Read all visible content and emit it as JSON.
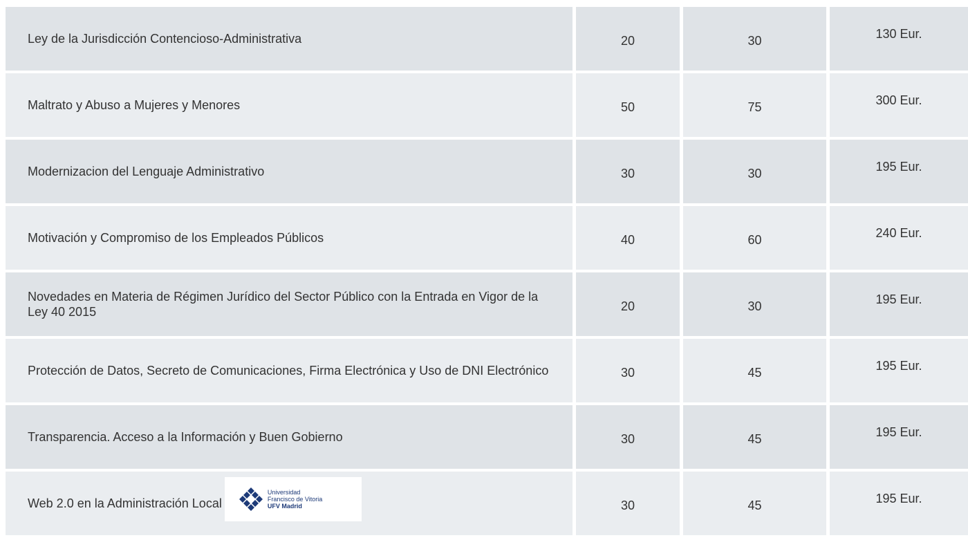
{
  "table": {
    "rows": [
      [
        "Ley de la Jurisdicción Contencioso-Administrativa",
        "20",
        "30",
        "130 Eur."
      ],
      [
        "Maltrato y Abuso a Mujeres y Menores",
        "50",
        "75",
        "300 Eur."
      ],
      [
        "Modernizacion del Lenguaje Administrativo",
        "30",
        "30",
        "195 Eur."
      ],
      [
        "Motivación y Compromiso de los Empleados Públicos",
        "40",
        "60",
        "240 Eur."
      ],
      [
        "Novedades en Materia de Régimen Jurídico del Sector Público con la Entrada en Vigor de la Ley 40 2015",
        "20",
        "30",
        "195 Eur."
      ],
      [
        "Protección de Datos, Secreto de Comunicaciones, Firma Electrónica y Uso de DNI Electrónico",
        "30",
        "45",
        "195 Eur."
      ],
      [
        "Transparencia. Acceso a la Información y Buen Gobierno",
        "30",
        "45",
        "195 Eur."
      ],
      [
        "Web 2.0 en la Administración Local",
        "30",
        "45",
        "195 Eur."
      ]
    ]
  },
  "logo": {
    "lines": [
      "Universidad",
      "Francisco de Vitoria",
      "UFV Madrid"
    ]
  }
}
